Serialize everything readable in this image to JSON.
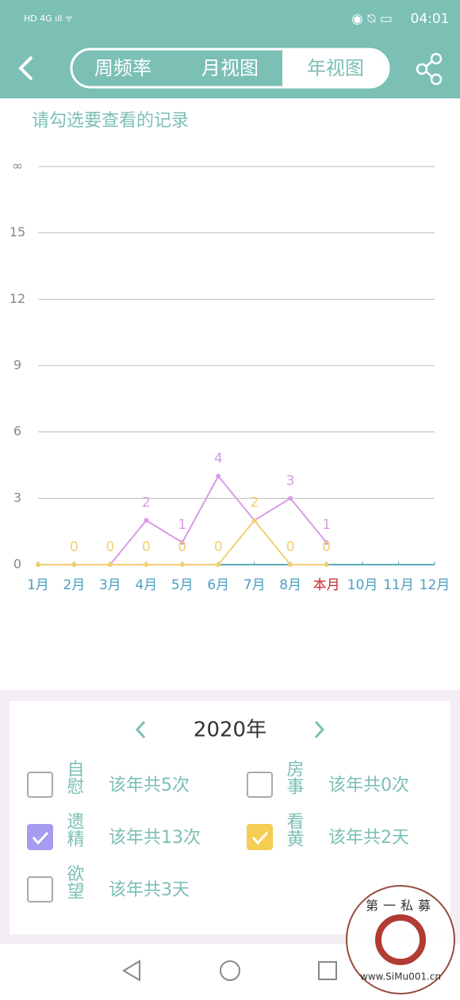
{
  "status_bar": {
    "time": "04:01"
  },
  "header": {
    "tabs": [
      "周频率",
      "月视图",
      "年视图"
    ],
    "selected": 2
  },
  "hint": "请勾选要查看的记录",
  "chart_data": {
    "type": "line",
    "categories": [
      "1月",
      "2月",
      "3月",
      "4月",
      "5月",
      "6月",
      "7月",
      "8月",
      "本月",
      "10月",
      "11月",
      "12月"
    ],
    "current_category": 8,
    "series": [
      {
        "color": "#d89be6",
        "values": [
          0,
          0,
          0,
          2,
          1,
          4,
          2,
          3,
          1,
          null,
          null,
          null
        ],
        "value_labels": [
          null,
          null,
          null,
          "2",
          "1",
          "4",
          null,
          "3",
          "1",
          null,
          null,
          null
        ]
      },
      {
        "color": "#f0d074",
        "values": [
          0,
          0,
          0,
          0,
          0,
          0,
          2,
          0,
          0,
          null,
          null,
          null
        ],
        "value_labels": [
          null,
          "0",
          "0",
          "0",
          "0",
          "0",
          "2",
          "0",
          "0",
          null,
          null,
          null
        ]
      }
    ],
    "ylim": [
      0,
      18
    ],
    "yticks": [
      0,
      3,
      6,
      9,
      12,
      15,
      {
        "value": 18,
        "label": "∞"
      }
    ],
    "grid": true
  },
  "year_panel": {
    "year": "2020年",
    "items": [
      {
        "name": "自慰",
        "summary": "该年共5次",
        "checked": false,
        "color": "#a59bf0"
      },
      {
        "name": "房事",
        "summary": "该年共0次",
        "checked": false,
        "color": "#a59bf0"
      },
      {
        "name": "遗精",
        "summary": "该年共13次",
        "checked": true,
        "color": "#a59bf0"
      },
      {
        "name": "看黄",
        "summary": "该年共2天",
        "checked": true,
        "color": "#f5cd52"
      },
      {
        "name": "欲望",
        "summary": "该年共3天",
        "checked": false,
        "color": "#a59bf0"
      }
    ]
  },
  "watermark": {
    "top": "第一私募",
    "bottom": "www.SiMu001.cn"
  }
}
